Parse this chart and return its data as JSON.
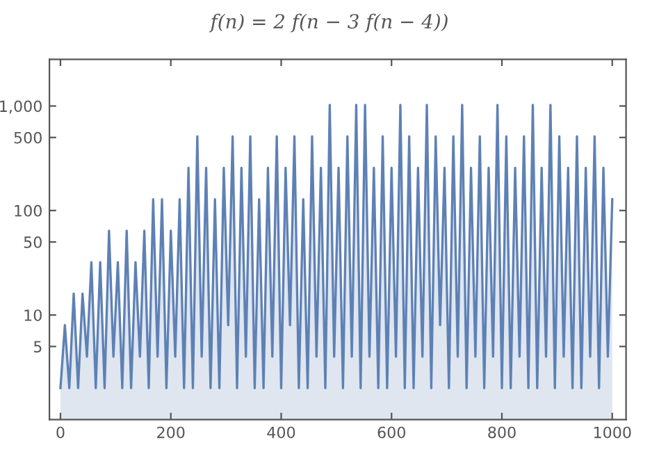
{
  "chart_data": {
    "type": "area",
    "title": "f(n) = 2 f(n − 3 f(n − 4))",
    "log": "y",
    "xlim": [
      -20,
      1025
    ],
    "ylim": [
      1,
      2800
    ],
    "xticks": [
      0,
      200,
      400,
      600,
      800,
      1000
    ],
    "yticks": [
      5,
      10,
      50,
      100,
      500,
      {
        "value": 1000,
        "label": "1,000"
      }
    ],
    "grid": false,
    "legend": false,
    "series": [
      {
        "color": "#5e81b5",
        "x": [
          0,
          8,
          16,
          24,
          32,
          40,
          48,
          56,
          64,
          72,
          80,
          88,
          96,
          104,
          112,
          120,
          128,
          136,
          144,
          152,
          160,
          168,
          176,
          184,
          192,
          200,
          208,
          216,
          224,
          232,
          240,
          248,
          256,
          264,
          272,
          280,
          288,
          296,
          304,
          312,
          320,
          328,
          336,
          344,
          352,
          360,
          368,
          376,
          384,
          392,
          400,
          408,
          416,
          424,
          432,
          440,
          448,
          456,
          464,
          472,
          480,
          488,
          496,
          504,
          512,
          520,
          528,
          536,
          544,
          552,
          560,
          568,
          576,
          584,
          592,
          600,
          608,
          616,
          624,
          632,
          640,
          648,
          656,
          664,
          672,
          680,
          688,
          696,
          704,
          712,
          720,
          728,
          736,
          744,
          752,
          760,
          768,
          776,
          784,
          792,
          800,
          808,
          816,
          824,
          832,
          840,
          848,
          856,
          864,
          872,
          880,
          888,
          896,
          904,
          912,
          920,
          928,
          936,
          944,
          952,
          960,
          968,
          976,
          984,
          992,
          1000
        ],
        "values": [
          2,
          8,
          2,
          16,
          2,
          16,
          4,
          32,
          2,
          32,
          2,
          64,
          4,
          32,
          2,
          64,
          2,
          32,
          4,
          64,
          2,
          128,
          4,
          128,
          2,
          64,
          4,
          128,
          2,
          256,
          2,
          512,
          4,
          256,
          2,
          128,
          2,
          256,
          8,
          512,
          2,
          256,
          4,
          512,
          2,
          128,
          2,
          256,
          4,
          512,
          2,
          256,
          8,
          512,
          2,
          128,
          2,
          512,
          4,
          256,
          2,
          1024,
          4,
          256,
          2,
          512,
          4,
          1024,
          2,
          1024,
          4,
          256,
          2,
          512,
          2,
          256,
          4,
          1024,
          2,
          512,
          2,
          256,
          4,
          1024,
          2,
          512,
          8,
          256,
          2,
          512,
          4,
          1024,
          2,
          256,
          4,
          512,
          2,
          256,
          4,
          1024,
          2,
          512,
          2,
          256,
          4,
          512,
          2,
          1024,
          2,
          256,
          4,
          1024,
          2,
          512,
          4,
          256,
          2,
          512,
          2,
          256,
          4,
          512,
          2,
          256,
          4,
          128
        ]
      }
    ]
  }
}
